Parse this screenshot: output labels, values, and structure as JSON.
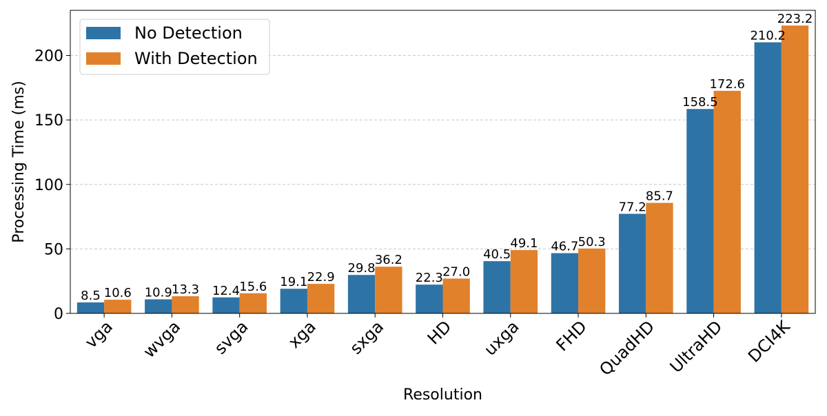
{
  "chart_data": {
    "type": "bar",
    "title": "",
    "xlabel": "Resolution",
    "ylabel": "Processing Time (ms)",
    "ylim": [
      0,
      235
    ],
    "yticks": [
      0,
      50,
      100,
      150,
      200
    ],
    "grid": "horizontal dashed",
    "legend_position": "top-left",
    "categories": [
      "vga",
      "wvga",
      "svga",
      "xga",
      "sxga",
      "HD",
      "uxga",
      "FHD",
      "QuadHD",
      "UltraHD",
      "DCI4K"
    ],
    "series": [
      {
        "name": "No Detection",
        "color": "#2e73a5",
        "values": [
          8.5,
          10.9,
          12.4,
          19.1,
          29.8,
          22.3,
          40.5,
          46.7,
          77.2,
          158.5,
          210.2
        ],
        "labels": [
          "8.5",
          "10.9",
          "12.4",
          "19.1",
          "29.8",
          "22.3",
          "40.5",
          "46.7",
          "77.2",
          "158.5",
          "210.2"
        ]
      },
      {
        "name": "With Detection",
        "color": "#e1812c",
        "values": [
          10.6,
          13.3,
          15.6,
          22.9,
          36.2,
          27.0,
          49.1,
          50.3,
          85.7,
          172.6,
          223.2
        ],
        "labels": [
          "10.6",
          "13.3",
          "15.6",
          "22.9",
          "36.2",
          "27.0",
          "49.1",
          "50.3",
          "85.7",
          "172.6",
          "223.2"
        ]
      }
    ]
  }
}
